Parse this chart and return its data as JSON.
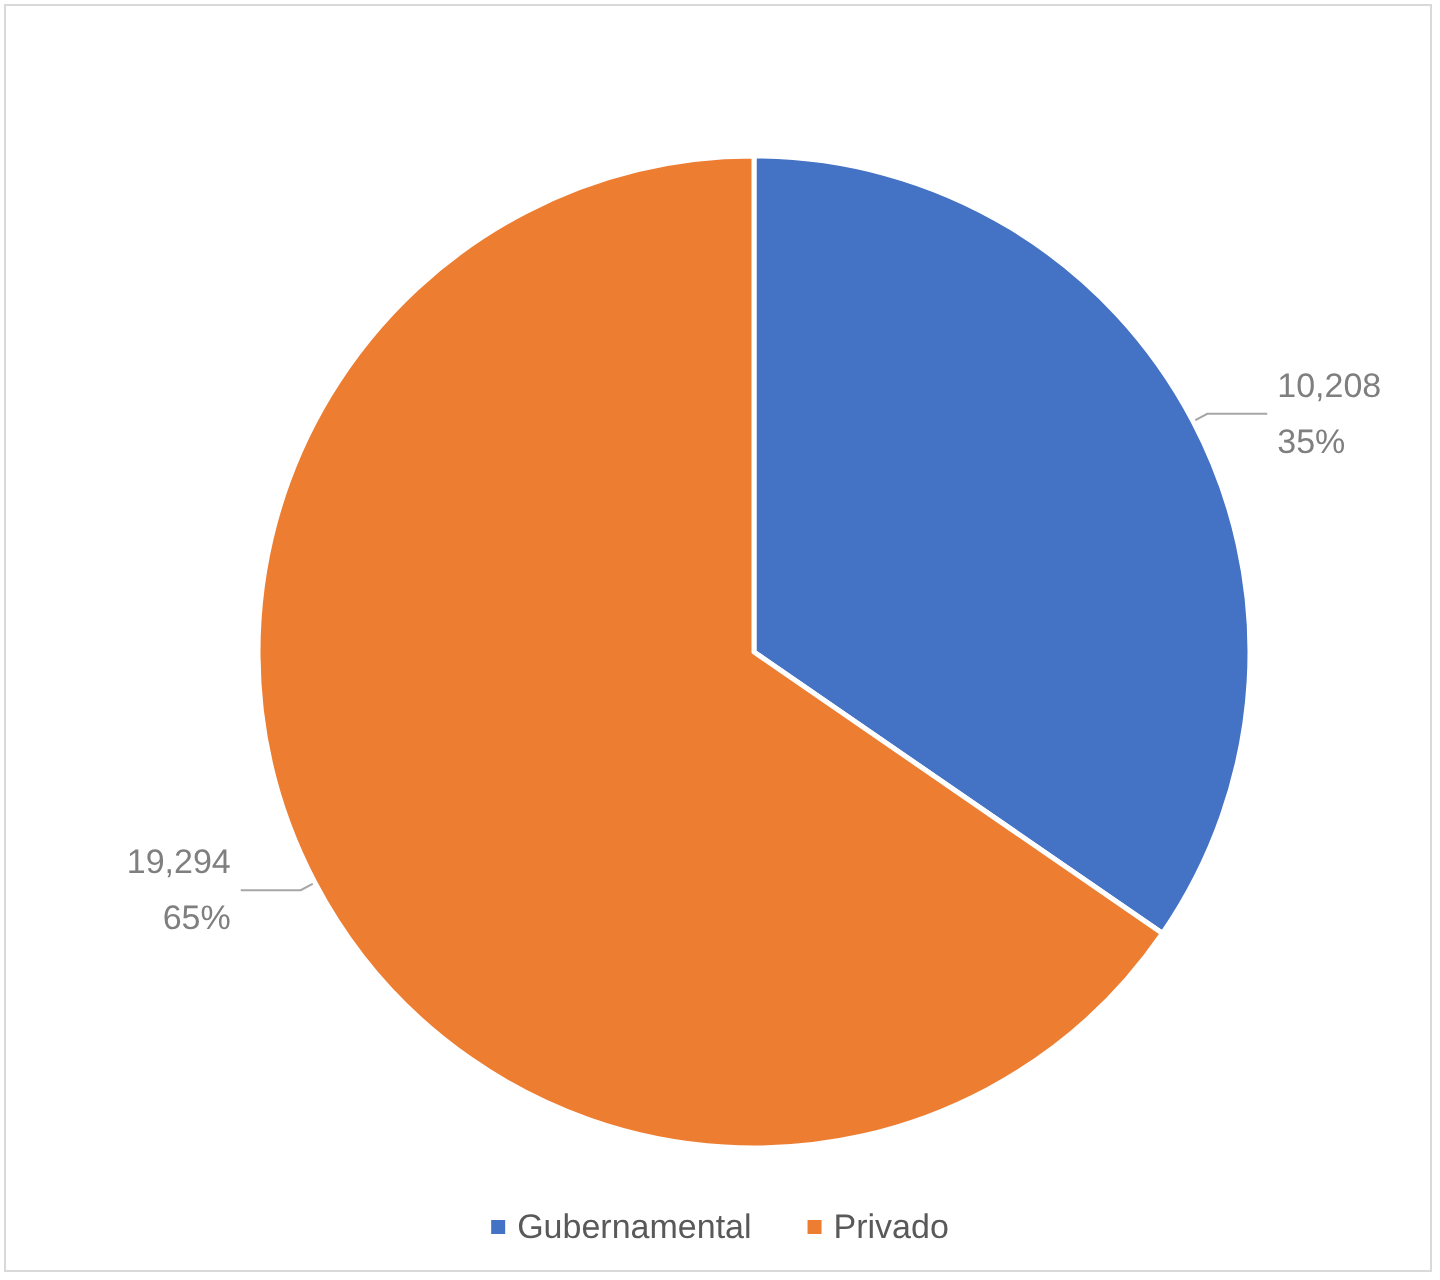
{
  "chart_data": {
    "type": "pie",
    "categories": [
      "Gubernamental",
      "Privado"
    ],
    "values": [
      10208,
      19294
    ],
    "colors": [
      "#4472c4",
      "#ed7d31"
    ],
    "value_labels": [
      "10,208\n35%",
      "19,294\n65%"
    ],
    "legend": "bottom"
  }
}
